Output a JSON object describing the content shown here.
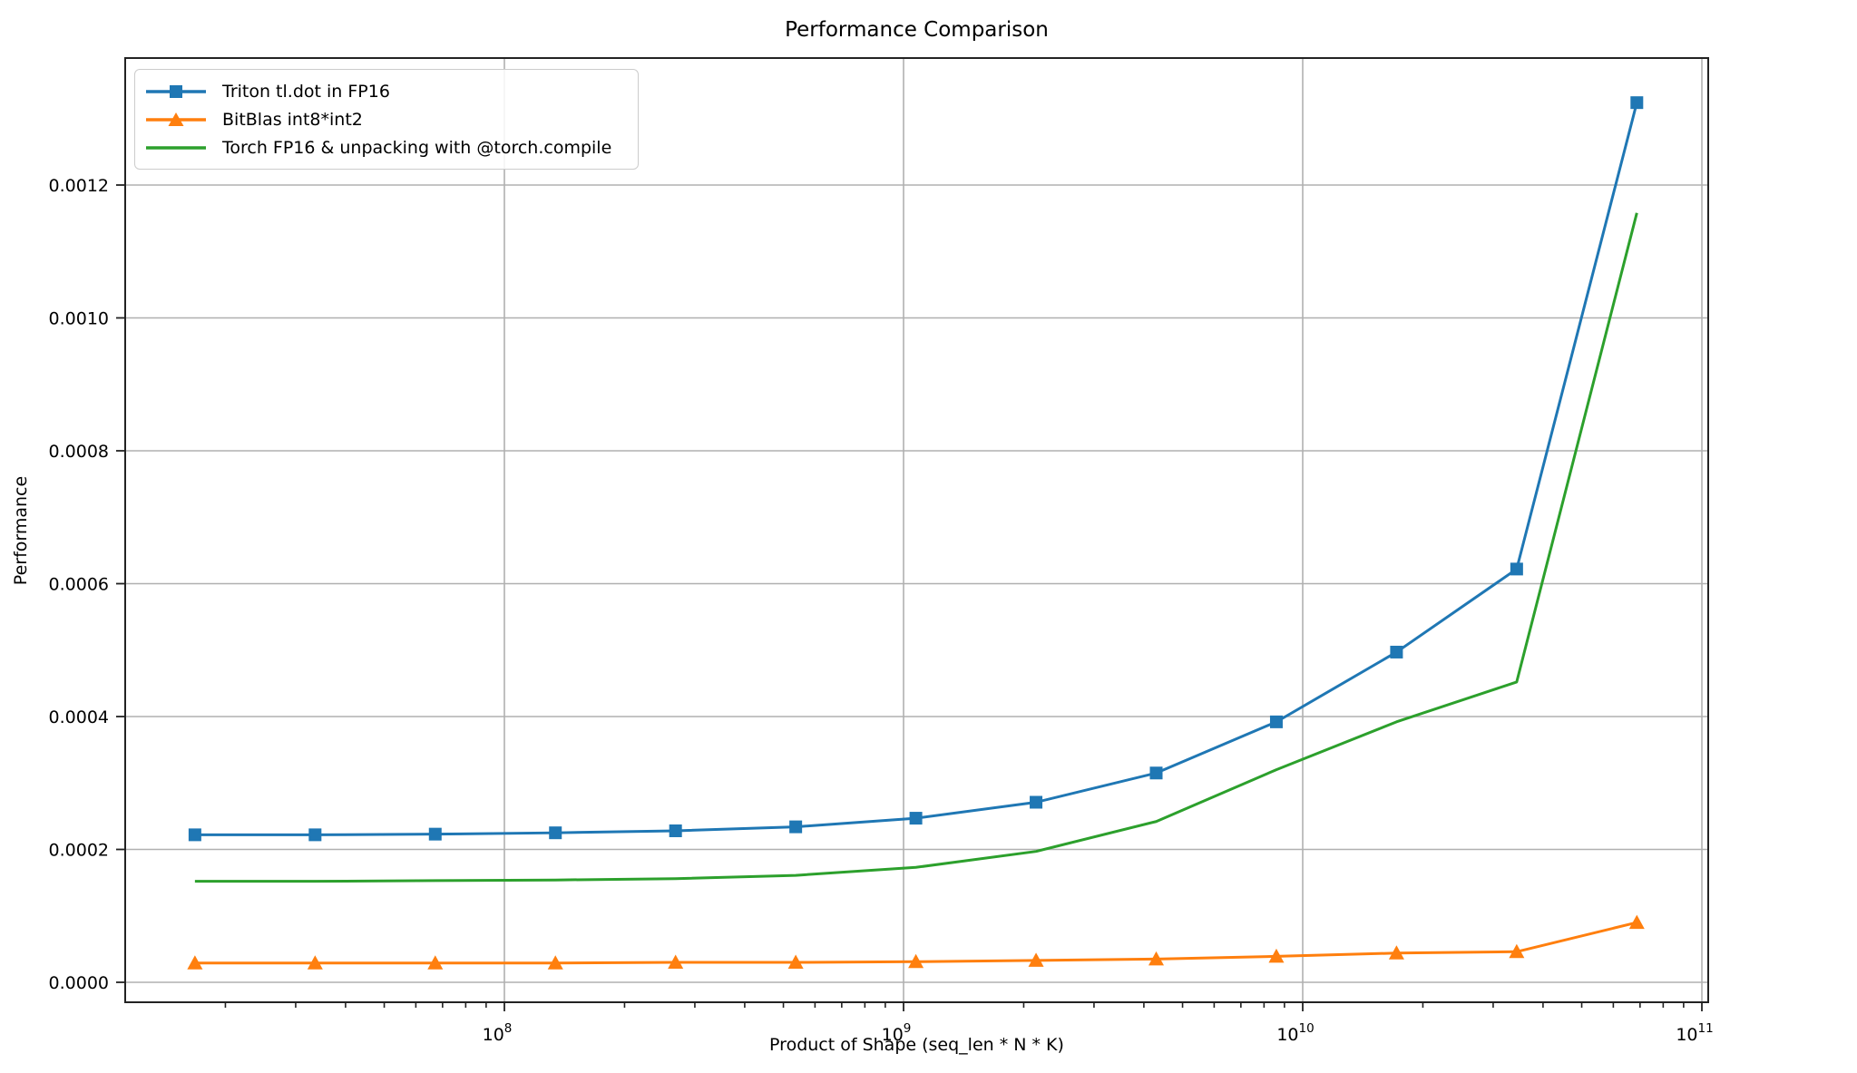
{
  "chart_data": {
    "type": "line",
    "title": "Performance Comparison",
    "xlabel": "Product of Shape (seq_len * N * K)",
    "ylabel": "Performance",
    "xscale": "log",
    "grid": true,
    "legend_position": "upper left",
    "xlim_log10": [
      7.05,
      11.02
    ],
    "ylim": [
      -3.3e-05,
      0.001393
    ],
    "background": "#ffffff",
    "grid_color": "#b0b0b0",
    "axis_color": "#222222",
    "x": [
      16777216,
      33554432,
      67108864,
      134217728,
      268435456,
      536870912,
      1073741824,
      2147483648,
      4294967296,
      8589934592,
      17179869184,
      34359738368,
      68719476736
    ],
    "series": [
      {
        "name": "Triton tl.dot in FP16",
        "color": "#1f77b4",
        "marker": "square",
        "values": [
          0.000222,
          0.000222,
          0.000223,
          0.000225,
          0.000228,
          0.000234,
          0.000247,
          0.000271,
          0.000315,
          0.000392,
          0.000497,
          0.000622,
          0.001324
        ]
      },
      {
        "name": "BitBlas int8*int2",
        "color": "#ff7f0e",
        "marker": "triangle",
        "values": [
          2.9e-05,
          2.9e-05,
          2.9e-05,
          2.9e-05,
          3e-05,
          3e-05,
          3.1e-05,
          3.3e-05,
          3.5e-05,
          3.9e-05,
          4.4e-05,
          4.6e-05,
          9e-05
        ]
      },
      {
        "name": "Torch FP16 & unpacking with @torch.compile",
        "color": "#2ca02c",
        "marker": "none",
        "values": [
          0.000152,
          0.000152,
          0.000153,
          0.000154,
          0.000156,
          0.000161,
          0.000173,
          0.000197,
          0.000242,
          0.00032,
          0.000392,
          0.000452,
          0.001158
        ]
      }
    ],
    "yticks": [
      {
        "label": "0.0000",
        "value": 0.0
      },
      {
        "label": "0.0002",
        "value": 0.0002
      },
      {
        "label": "0.0004",
        "value": 0.0004
      },
      {
        "label": "0.0006",
        "value": 0.0006
      },
      {
        "label": "0.0008",
        "value": 0.0008
      },
      {
        "label": "0.0010",
        "value": 0.001
      },
      {
        "label": "0.0012",
        "value": 0.0012
      }
    ],
    "xticks": [
      {
        "base": "10",
        "exponent": "8",
        "value": 100000000
      },
      {
        "base": "10",
        "exponent": "9",
        "value": 1000000000
      },
      {
        "base": "10",
        "exponent": "10",
        "value": 10000000000
      },
      {
        "base": "10",
        "exponent": "11",
        "value": 100000000000
      }
    ]
  }
}
